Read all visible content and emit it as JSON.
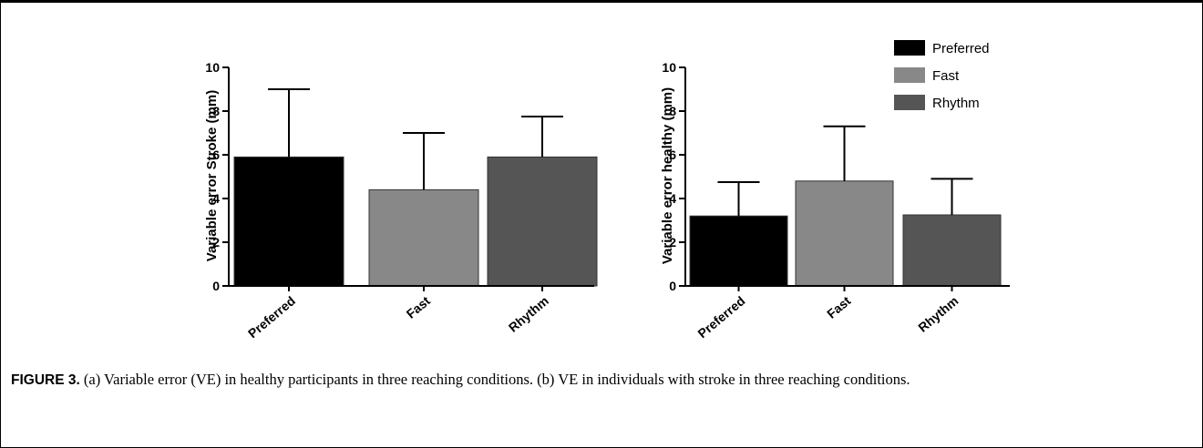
{
  "chart_data": [
    {
      "type": "bar",
      "categories": [
        "Preferred",
        "Fast",
        "Rhythm"
      ],
      "values": [
        5.9,
        4.4,
        5.9
      ],
      "error_upper": [
        9.0,
        7.0,
        7.75
      ],
      "colors": [
        "#000000",
        "#888888",
        "#555555"
      ],
      "ylabel": "Variable error Stroke (mm)",
      "ylim": [
        0,
        10
      ],
      "yticks": [
        0,
        2,
        4,
        6,
        8,
        10
      ],
      "grid": false
    },
    {
      "type": "bar",
      "categories": [
        "Preferred",
        "Fast",
        "Rhythm"
      ],
      "values": [
        3.2,
        4.8,
        3.25
      ],
      "error_upper": [
        4.75,
        7.3,
        4.9
      ],
      "colors": [
        "#000000",
        "#888888",
        "#555555"
      ],
      "ylabel": "Variable error healthy (mm)",
      "ylim": [
        0,
        10
      ],
      "yticks": [
        0,
        2,
        4,
        6,
        8,
        10
      ],
      "grid": false,
      "legend": {
        "placement": "top-right",
        "entries": [
          {
            "label": "Preferred",
            "color": "#000000"
          },
          {
            "label": "Fast",
            "color": "#888888"
          },
          {
            "label": "Rhythm",
            "color": "#555555"
          }
        ]
      }
    }
  ],
  "caption": {
    "label": "FIGURE 3.",
    "text": " (a) Variable error (VE) in healthy participants in three reaching conditions. (b) VE in individuals with stroke in three reaching conditions."
  }
}
